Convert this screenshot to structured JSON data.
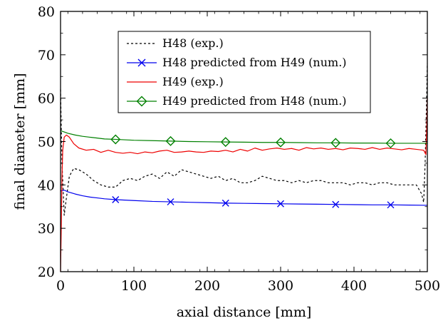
{
  "chart_data": {
    "type": "line",
    "title": "",
    "xlabel": "axial distance [mm]",
    "ylabel": "final diameter [mm]",
    "xlim": [
      0,
      500
    ],
    "ylim": [
      20,
      80
    ],
    "xticks": [
      0,
      100,
      200,
      300,
      400,
      500
    ],
    "yticks": [
      20,
      30,
      40,
      50,
      60,
      70,
      80
    ],
    "grid": false,
    "legend_position": "top-center",
    "series": [
      {
        "name": "H48 (exp.)",
        "color": "#000000",
        "style": "dashed",
        "marker": "none",
        "x": [
          0,
          2,
          5,
          8,
          12,
          18,
          25,
          35,
          45,
          55,
          65,
          75,
          85,
          95,
          105,
          115,
          125,
          135,
          145,
          155,
          165,
          175,
          185,
          195,
          205,
          215,
          225,
          235,
          245,
          255,
          265,
          275,
          285,
          295,
          305,
          315,
          325,
          335,
          345,
          355,
          365,
          375,
          385,
          395,
          405,
          415,
          425,
          435,
          445,
          455,
          465,
          475,
          485,
          492,
          495,
          497,
          499,
          500
        ],
        "y": [
          62,
          45,
          33,
          37,
          42,
          43.8,
          43.5,
          42.5,
          41,
          40,
          39.5,
          39.5,
          41,
          41.5,
          41,
          42,
          42.5,
          41.5,
          43,
          42,
          43.5,
          43,
          42.5,
          42,
          41.5,
          42,
          41,
          41.5,
          40.5,
          40.5,
          41,
          42,
          41.5,
          41,
          41,
          40.5,
          41,
          40.5,
          41,
          41,
          40.5,
          40.5,
          40.5,
          40,
          40.5,
          40.5,
          40,
          40.5,
          40.5,
          40,
          40,
          40,
          40,
          38,
          36,
          45,
          60,
          68
        ]
      },
      {
        "name": "H48 predicted from H49 (num.)",
        "color": "#0000ee",
        "style": "solid",
        "marker": "x",
        "x": [
          0,
          5,
          10,
          20,
          30,
          40,
          50,
          60,
          75,
          100,
          125,
          150,
          175,
          200,
          225,
          250,
          275,
          300,
          325,
          350,
          375,
          400,
          425,
          450,
          475,
          500
        ],
        "y": [
          38.6,
          38.8,
          38.4,
          37.9,
          37.5,
          37.2,
          37.0,
          36.8,
          36.6,
          36.4,
          36.2,
          36.1,
          36.0,
          35.9,
          35.8,
          35.75,
          35.7,
          35.65,
          35.6,
          35.55,
          35.5,
          35.45,
          35.4,
          35.4,
          35.35,
          35.3
        ],
        "marker_x": [
          75,
          150,
          225,
          300,
          375,
          450
        ],
        "marker_y": [
          36.6,
          36.1,
          35.8,
          35.65,
          35.5,
          35.4
        ]
      },
      {
        "name": "H49 (exp.)",
        "color": "#ee0000",
        "style": "solid",
        "marker": "none",
        "x": [
          0,
          1,
          2,
          3,
          5,
          8,
          12,
          18,
          25,
          35,
          45,
          55,
          65,
          75,
          85,
          95,
          105,
          115,
          125,
          135,
          145,
          155,
          165,
          175,
          185,
          195,
          205,
          215,
          225,
          235,
          245,
          255,
          265,
          275,
          285,
          295,
          305,
          315,
          325,
          335,
          345,
          355,
          365,
          375,
          385,
          395,
          405,
          415,
          425,
          435,
          445,
          455,
          465,
          475,
          485,
          495,
          498,
          499,
          500
        ],
        "y": [
          20,
          30,
          42,
          48,
          51,
          51.5,
          51,
          49.5,
          48.5,
          48,
          48.2,
          47.5,
          48,
          47.5,
          47.3,
          47.5,
          47.2,
          47.6,
          47.4,
          47.8,
          48,
          47.5,
          47.6,
          47.8,
          47.6,
          47.5,
          47.8,
          47.7,
          48,
          47.6,
          48.2,
          47.8,
          48.5,
          48,
          48.3,
          48.5,
          48.2,
          48.4,
          48,
          48.6,
          48.3,
          48.5,
          48.2,
          48.4,
          48.1,
          48.5,
          48.4,
          48.2,
          48.6,
          48.2,
          48.5,
          48.3,
          48.1,
          48.4,
          48.2,
          48,
          47,
          52,
          60
        ]
      },
      {
        "name": "H49 predicted from H48 (num.)",
        "color": "#008000",
        "style": "solid",
        "marker": "diamond",
        "x": [
          0,
          5,
          10,
          20,
          30,
          40,
          50,
          60,
          75,
          100,
          125,
          150,
          175,
          200,
          225,
          250,
          275,
          300,
          325,
          350,
          375,
          400,
          425,
          450,
          475,
          500
        ],
        "y": [
          52.5,
          52.2,
          51.9,
          51.5,
          51.2,
          51.0,
          50.8,
          50.6,
          50.5,
          50.3,
          50.2,
          50.1,
          50.0,
          49.95,
          49.9,
          49.85,
          49.8,
          49.8,
          49.75,
          49.7,
          49.7,
          49.65,
          49.65,
          49.6,
          49.6,
          49.6
        ],
        "marker_x": [
          75,
          150,
          225,
          300,
          375,
          450
        ],
        "marker_y": [
          50.5,
          50.1,
          49.9,
          49.8,
          49.7,
          49.6
        ]
      }
    ]
  }
}
